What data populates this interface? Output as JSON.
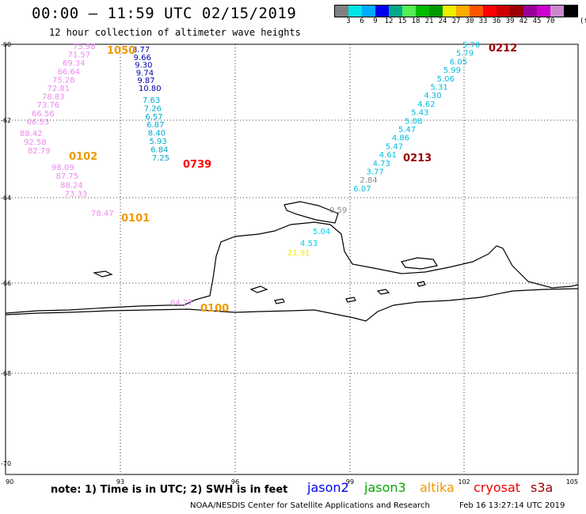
{
  "header": {
    "title": "00:00 – 11:59 UTC 02/15/2019",
    "subtitle": "12 hour collection of altimeter wave heights"
  },
  "colorbar": {
    "colors": [
      "#808080",
      "#00e5e5",
      "#00aaff",
      "#0000ee",
      "#00aa88",
      "#55ee55",
      "#00bb00",
      "#009900",
      "#eeee00",
      "#ffaa00",
      "#ff5500",
      "#ff0000",
      "#cc0000",
      "#990000",
      "#990099",
      "#cc00cc",
      "#cc88cc",
      "#000000"
    ],
    "ticks": [
      "3",
      "6",
      "9",
      "12",
      "15",
      "18",
      "21",
      "24",
      "27",
      "30",
      "33",
      "36",
      "39",
      "42",
      "45",
      "70"
    ],
    "unit": "(ft)"
  },
  "map": {
    "lat_labels": [
      "-60",
      "-62",
      "-64",
      "-66",
      "-68",
      "-70"
    ],
    "lon_labels": [
      "90",
      "93",
      "96",
      "99",
      "102",
      "105"
    ],
    "grid": "dotted",
    "time_labels": [
      {
        "text": "1050",
        "color": "#ee9900"
      },
      {
        "text": "0102",
        "color": "#ee9900"
      },
      {
        "text": "0101",
        "color": "#ee9900"
      },
      {
        "text": "0739",
        "color": "#ff0000"
      },
      {
        "text": "0100",
        "color": "#ee9900"
      },
      {
        "text": "0212",
        "color": "#990000"
      },
      {
        "text": "0213",
        "color": "#990000"
      }
    ],
    "tracks": [
      {
        "satellite": "altika",
        "color": "#ee88ee",
        "values": [
          "75.98",
          "71.57",
          "69.34",
          "66.64",
          "75.28",
          "72.81",
          "78.83",
          "73.76",
          "66.56",
          "66.53",
          "88.42",
          "92.58",
          "82.79",
          "98.09",
          "87.75",
          "88.24",
          "73.33",
          "78.47"
        ]
      },
      {
        "satellite": "altika-short",
        "color": "#ee88ee",
        "values": [
          "64.77"
        ]
      },
      {
        "satellite": "cryosat",
        "color": "#0000aa",
        "values": [
          "8.77",
          "9.66",
          "9.30",
          "9.74",
          "9.87",
          "10.80"
        ]
      },
      {
        "satellite": "cryosat-light",
        "color": "#00aacc",
        "values": [
          "7.63",
          "7.26",
          "6.57",
          "6.87",
          "8.40",
          "5.93",
          "6.84",
          "7.25"
        ]
      },
      {
        "satellite": "s3a",
        "color": "#00bbdd",
        "values": [
          "5.70",
          "5.79",
          "6.05",
          "5.99",
          "5.06",
          "5.31",
          "4.30",
          "4.62",
          "5.43",
          "5.08",
          "5.47",
          "4.86",
          "5.47",
          "4.61",
          "4.73",
          "3.77",
          "2.84",
          "6.07"
        ]
      },
      {
        "satellite": "misc",
        "color": "#00ccee",
        "values": [
          "0.59",
          "5.04",
          "4.53",
          "21.91"
        ]
      }
    ]
  },
  "footer": {
    "note": "note: 1) Time is in UTC; 2) SWH is in feet",
    "legend": [
      {
        "name": "jason2",
        "color": "#0000ee"
      },
      {
        "name": "jason3",
        "color": "#00aa00"
      },
      {
        "name": "altika",
        "color": "#ee9900"
      },
      {
        "name": "cryosat",
        "color": "#ee0000"
      },
      {
        "name": "s3a",
        "color": "#990000"
      }
    ],
    "credit": "NOAA/NESDIS Center for Satellite Applications and Research",
    "generated": "Feb 16 13:27:14 UTC 2019"
  }
}
